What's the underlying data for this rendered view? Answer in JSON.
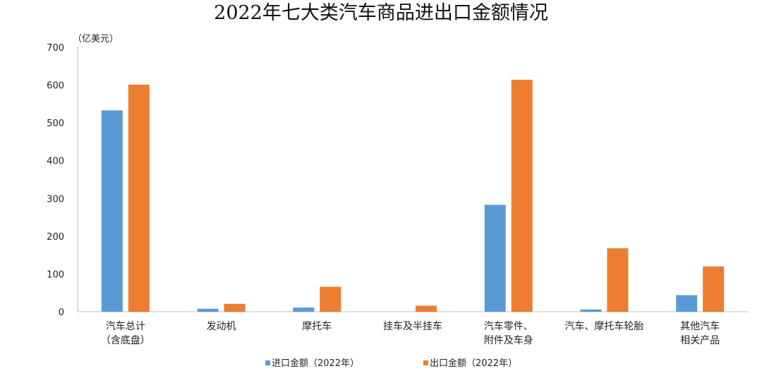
{
  "chart_data": {
    "type": "bar",
    "title": "2022年七大类汽车商品进出口金额情况",
    "unit_label": "（亿美元）",
    "categories": [
      [
        "汽车总计",
        "（含底盘）"
      ],
      [
        "发动机"
      ],
      [
        "摩托车"
      ],
      [
        "挂车及半挂车"
      ],
      [
        "汽车零件、",
        "附件及车身"
      ],
      [
        "汽车、摩托车轮胎"
      ],
      [
        "其他汽车",
        "相关产品"
      ]
    ],
    "series": [
      {
        "name": "进口金额（2022年）",
        "color": "#5B9BD5",
        "values": [
          533,
          8,
          11,
          0,
          283,
          6,
          44
        ]
      },
      {
        "name": "出口金额（2022年）",
        "color": "#ED7D31",
        "values": [
          601,
          21,
          66,
          16,
          614,
          168,
          120
        ]
      }
    ],
    "ylim": [
      0,
      700
    ],
    "yticks": [
      0,
      100,
      200,
      300,
      400,
      500,
      600,
      700
    ],
    "grid": false,
    "legend_position": "bottom"
  }
}
